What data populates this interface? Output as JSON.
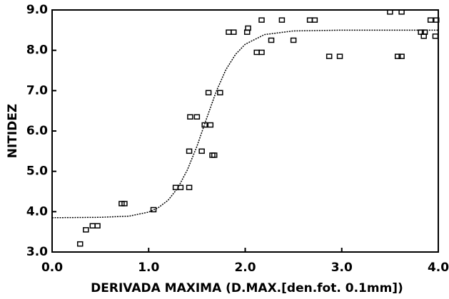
{
  "chart_data": {
    "type": "scatter",
    "xlabel": "DERIVADA MAXIMA (D.MAX.[den.fot. 0.1mm])",
    "ylabel": "NITIDEZ",
    "xlim": [
      0,
      4
    ],
    "ylim": [
      3,
      9
    ],
    "xticks": [
      {
        "value": 0,
        "label": "0.0"
      },
      {
        "value": 1,
        "label": "1.0"
      },
      {
        "value": 2,
        "label": "2.0"
      },
      {
        "value": 3,
        "label": "3.0"
      },
      {
        "value": 4,
        "label": "4.0"
      }
    ],
    "yticks": [
      {
        "value": 3,
        "label": "3.0"
      },
      {
        "value": 4,
        "label": "4.0"
      },
      {
        "value": 5,
        "label": "5.0"
      },
      {
        "value": 6,
        "label": "6.0"
      },
      {
        "value": 7,
        "label": "7.0"
      },
      {
        "value": 8,
        "label": "8.0"
      },
      {
        "value": 9,
        "label": "9.0"
      }
    ],
    "series": [
      {
        "type": "scatter",
        "color": "#000000",
        "x": [
          0.29,
          0.35,
          0.42,
          0.47,
          0.72,
          0.75,
          1.05,
          1.28,
          1.33,
          1.42,
          1.42,
          1.55,
          1.43,
          1.5,
          1.58,
          1.64,
          1.66,
          1.68,
          1.62,
          1.74,
          1.83,
          1.88,
          2.02,
          2.03,
          2.12,
          2.17,
          2.17,
          2.38,
          2.27,
          2.5,
          2.67,
          2.72,
          2.87,
          2.98,
          3.5,
          3.62,
          3.58,
          3.62,
          3.82,
          3.86,
          3.85,
          3.92,
          3.98,
          3.97
        ],
        "values": [
          3.2,
          3.55,
          3.65,
          3.65,
          4.2,
          4.2,
          4.05,
          4.6,
          4.6,
          4.6,
          5.5,
          5.5,
          6.35,
          6.35,
          6.15,
          6.15,
          5.4,
          5.4,
          6.95,
          6.95,
          8.45,
          8.45,
          8.45,
          8.55,
          7.95,
          7.95,
          8.75,
          8.75,
          8.25,
          8.25,
          8.75,
          8.75,
          7.85,
          7.85,
          8.95,
          8.95,
          7.85,
          7.85,
          8.45,
          8.45,
          8.35,
          8.75,
          8.75,
          8.35
        ]
      },
      {
        "type": "line",
        "color": "#000000",
        "x": [
          0,
          0.5,
          0.8,
          1.0,
          1.1,
          1.2,
          1.3,
          1.4,
          1.5,
          1.6,
          1.7,
          1.8,
          1.9,
          2.0,
          2.2,
          2.5,
          3.0,
          4.0
        ],
        "values": [
          3.85,
          3.86,
          3.89,
          3.99,
          4.1,
          4.28,
          4.58,
          5.03,
          5.62,
          6.31,
          6.98,
          7.52,
          7.9,
          8.15,
          8.39,
          8.48,
          8.5,
          8.5
        ]
      }
    ]
  }
}
